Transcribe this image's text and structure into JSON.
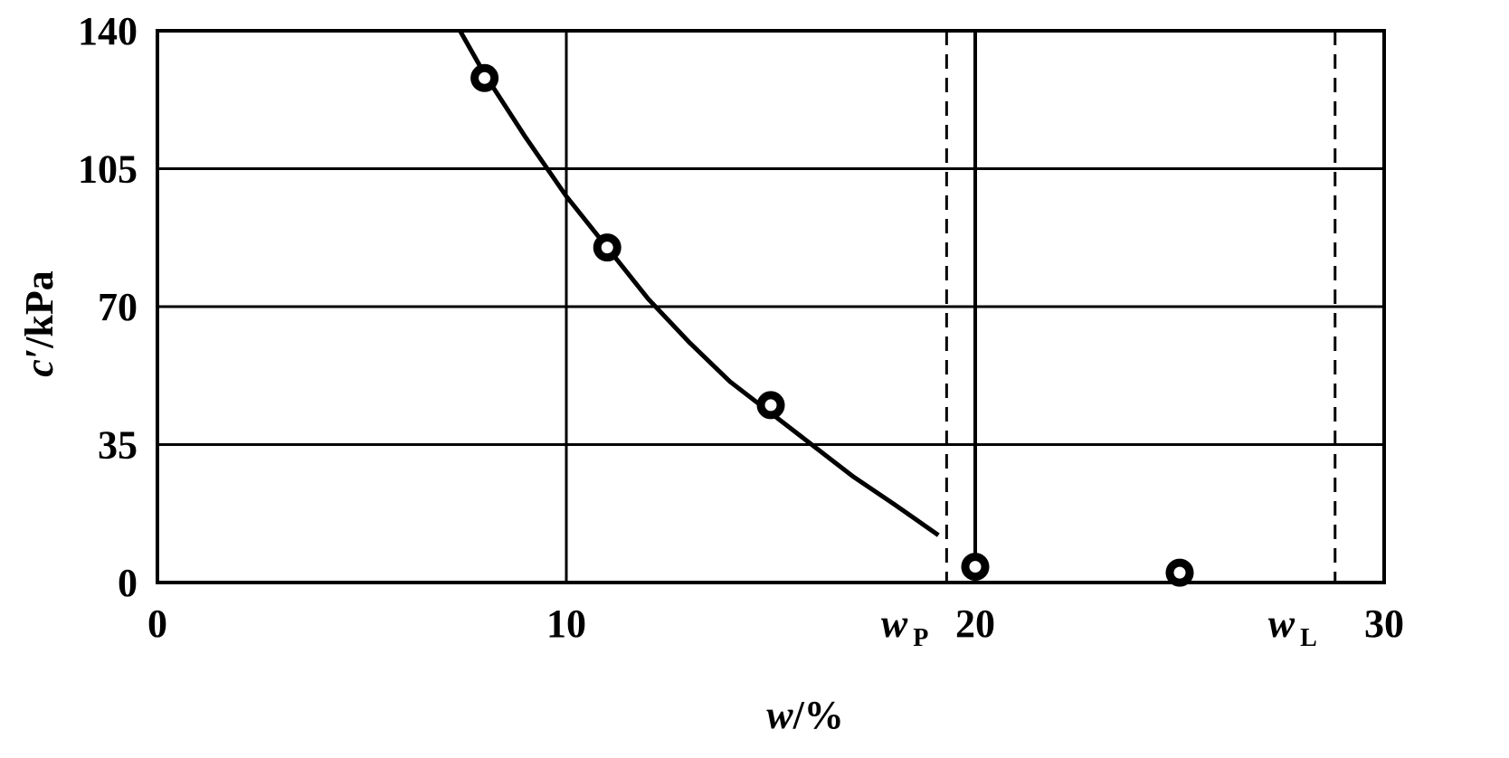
{
  "chart_data": {
    "type": "scatter",
    "title": "",
    "xlabel": {
      "var": "w",
      "unit": "/%"
    },
    "ylabel": {
      "var": "c′",
      "unit": "/kPa"
    },
    "xlim": [
      0,
      30
    ],
    "ylim": [
      0,
      140
    ],
    "x_ticks": [
      0,
      10,
      20,
      30
    ],
    "y_ticks": [
      0,
      35,
      70,
      105,
      140
    ],
    "grid": true,
    "points": [
      {
        "x": 8.0,
        "y": 128
      },
      {
        "x": 11.0,
        "y": 85
      },
      {
        "x": 15.0,
        "y": 45
      },
      {
        "x": 20.0,
        "y": 4
      },
      {
        "x": 25.0,
        "y": 2.5
      }
    ],
    "fit_curve": [
      {
        "x": 7.4,
        "y": 140
      },
      {
        "x": 8.0,
        "y": 129
      },
      {
        "x": 9.0,
        "y": 113
      },
      {
        "x": 10.0,
        "y": 98
      },
      {
        "x": 11.0,
        "y": 85
      },
      {
        "x": 12.0,
        "y": 72
      },
      {
        "x": 13.0,
        "y": 61
      },
      {
        "x": 14.0,
        "y": 51
      },
      {
        "x": 15.0,
        "y": 43
      },
      {
        "x": 16.0,
        "y": 35
      },
      {
        "x": 17.0,
        "y": 27
      },
      {
        "x": 18.0,
        "y": 20
      },
      {
        "x": 19.1,
        "y": 12
      }
    ],
    "reference_lines": [
      {
        "x": 19.3,
        "label": "w",
        "subscript": "P",
        "style": "dashed"
      },
      {
        "x": 28.8,
        "label": "w",
        "subscript": "L",
        "style": "dashed"
      }
    ],
    "vertical_mark": {
      "x": 20.0,
      "y_from": 4,
      "y_to": 140
    }
  }
}
